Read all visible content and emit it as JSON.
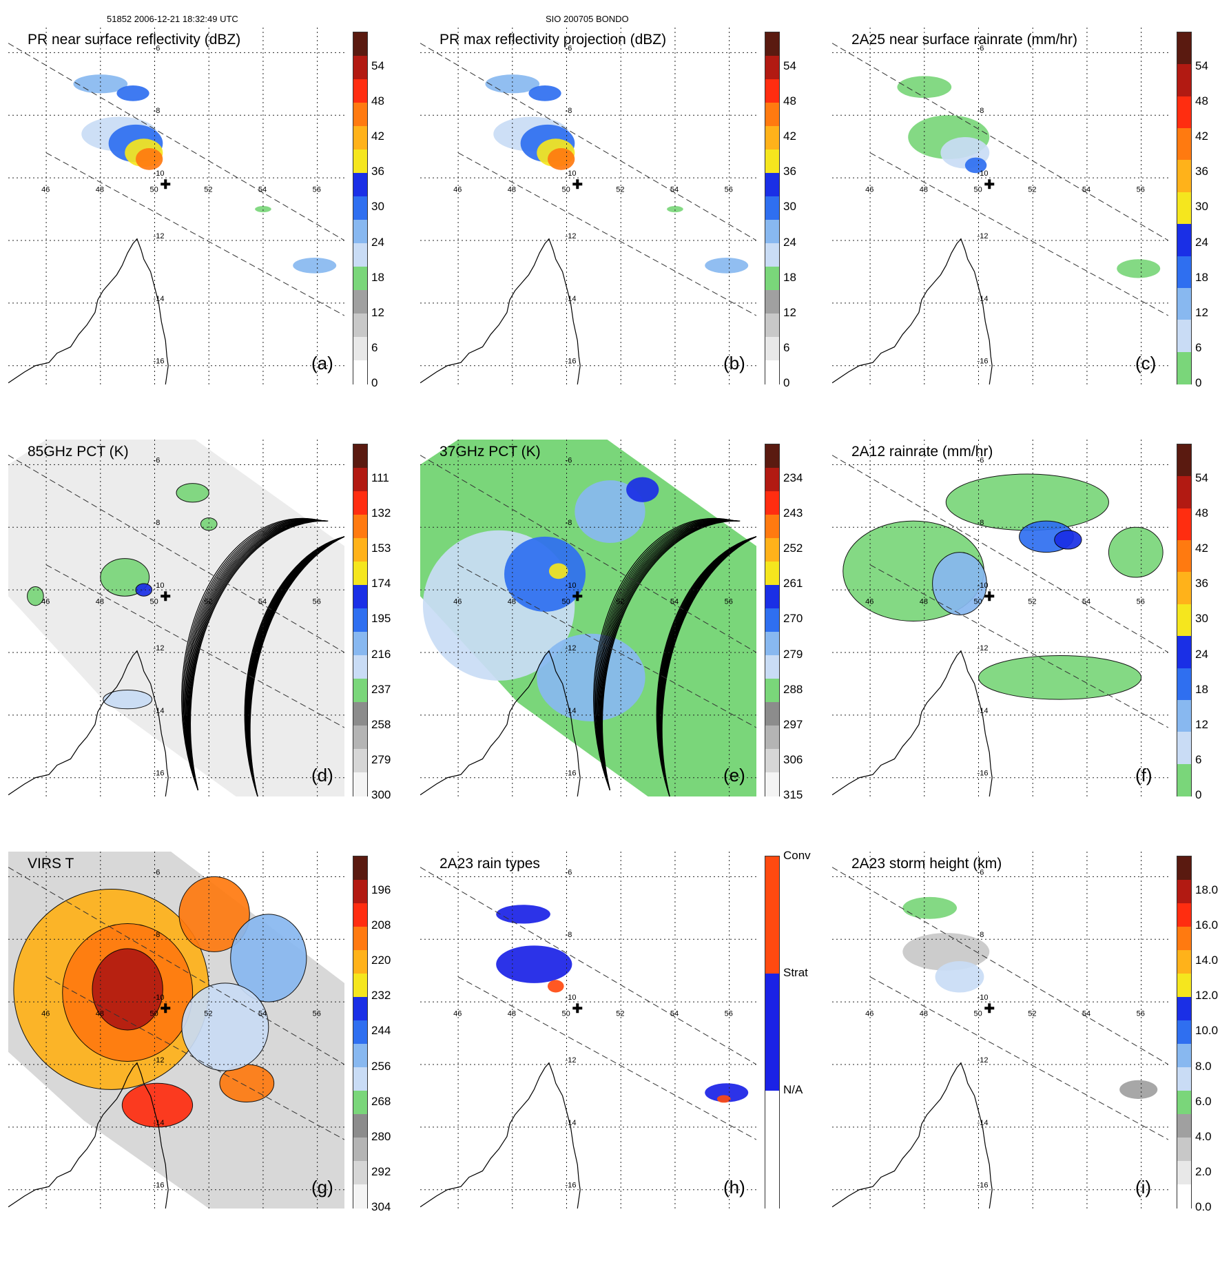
{
  "header": {
    "left": "51852 2006-12-21 18:32:49 UTC",
    "center": "SIO 200705 BONDO"
  },
  "map": {
    "lon_labels": [
      "46",
      "48",
      "50",
      "52",
      "54",
      "56"
    ],
    "lat_labels": [
      "-6",
      "-8",
      "-10",
      "-12",
      "-14",
      "-16"
    ],
    "storm_center": {
      "lon": 50.4,
      "lat": -10.2
    }
  },
  "panels": [
    {
      "id": "a",
      "title": "PR near surface reflectivity (dBZ)",
      "label": "(a)",
      "ticks": [
        "54",
        "48",
        "42",
        "36",
        "30",
        "24",
        "18",
        "12",
        "6",
        "0"
      ],
      "swath": "pr",
      "palette": "refl"
    },
    {
      "id": "b",
      "title": "PR max reflectivity projection (dBZ)",
      "label": "(b)",
      "ticks": [
        "54",
        "48",
        "42",
        "36",
        "30",
        "24",
        "18",
        "12",
        "6",
        "0"
      ],
      "swath": "pr",
      "palette": "refl"
    },
    {
      "id": "c",
      "title": "2A25 near surface rainrate (mm/hr)",
      "label": "(c)",
      "ticks": [
        "54",
        "48",
        "42",
        "36",
        "30",
        "24",
        "18",
        "12",
        "6",
        "0"
      ],
      "swath": "pr",
      "palette": "rain"
    },
    {
      "id": "d",
      "title": "85GHz PCT (K)",
      "label": "(d)",
      "ticks": [
        "111",
        "132",
        "153",
        "174",
        "195",
        "216",
        "237",
        "258",
        "279",
        "300"
      ],
      "swath": "tmi",
      "palette": "pct85"
    },
    {
      "id": "e",
      "title": "37GHz PCT (K)",
      "label": "(e)",
      "ticks": [
        "234",
        "243",
        "252",
        "261",
        "270",
        "279",
        "288",
        "297",
        "306",
        "315"
      ],
      "swath": "tmi",
      "palette": "pct37"
    },
    {
      "id": "f",
      "title": "2A12 rainrate (mm/hr)",
      "label": "(f)",
      "ticks": [
        "54",
        "48",
        "42",
        "36",
        "30",
        "24",
        "18",
        "12",
        "6",
        "0"
      ],
      "swath": "tmi",
      "palette": "rain12"
    },
    {
      "id": "g",
      "title": "VIRS T",
      "label": "(g)",
      "ticks": [
        "196",
        "208",
        "220",
        "232",
        "244",
        "256",
        "268",
        "280",
        "292",
        "304"
      ],
      "swath": "virs",
      "palette": "virs"
    },
    {
      "id": "h",
      "title": "2A23 rain types",
      "label": "(h)",
      "ticks": [
        "Conv",
        "Strat",
        "N/A"
      ],
      "swath": "pr",
      "palette": "types"
    },
    {
      "id": "i",
      "title": "2A23 storm height (km)",
      "label": "(i)",
      "ticks": [
        "18.0",
        "16.0",
        "14.0",
        "12.0",
        "10.0",
        "8.0",
        "6.0",
        "4.0",
        "2.0",
        "0.0"
      ],
      "swath": "pr",
      "palette": "height"
    }
  ],
  "palettes": {
    "refl": [
      "#5a1a10",
      "#b21a12",
      "#ff2d10",
      "#ff7a10",
      "#ffb21a",
      "#f5e61e",
      "#1a2fe6",
      "#2f6ff0",
      "#88b8f0",
      "#c9dcf5",
      "#7ad67a",
      "#a0a0a0",
      "#c8c8c8",
      "#e8e8e8",
      "#ffffff"
    ],
    "rain": [
      "#5a1a10",
      "#b21a12",
      "#ff2d10",
      "#ff7a10",
      "#ffb21a",
      "#f5e61e",
      "#1a2fe6",
      "#2f6ff0",
      "#88b8f0",
      "#c9dcf5",
      "#7ad67a"
    ],
    "rain12": [
      "#5a1a10",
      "#b21a12",
      "#ff2d10",
      "#ff7a10",
      "#ffb21a",
      "#f5e61e",
      "#1a2fe6",
      "#2f6ff0",
      "#88b8f0",
      "#c9dcf5",
      "#7ad67a"
    ],
    "pct85": [
      "#5a1a10",
      "#b21a12",
      "#ff2d10",
      "#ff7a10",
      "#ffb21a",
      "#f5e61e",
      "#1a2fe6",
      "#2f6ff0",
      "#88b8f0",
      "#c9dcf5",
      "#7ad67a",
      "#8c8c8c",
      "#b4b4b4",
      "#d6d6d6",
      "#f4f4f4"
    ],
    "pct37": [
      "#5a1a10",
      "#b21a12",
      "#ff2d10",
      "#ff7a10",
      "#ffb21a",
      "#f5e61e",
      "#1a2fe6",
      "#2f6ff0",
      "#88b8f0",
      "#c9dcf5",
      "#7ad67a",
      "#8c8c8c",
      "#b4b4b4",
      "#d6d6d6",
      "#f4f4f4"
    ],
    "virs": [
      "#5a1a10",
      "#b21a12",
      "#ff2d10",
      "#ff7a10",
      "#ffb21a",
      "#f5e61e",
      "#1a2fe6",
      "#2f6ff0",
      "#88b8f0",
      "#c9dcf5",
      "#7ad67a",
      "#8c8c8c",
      "#b4b4b4",
      "#d6d6d6",
      "#f4f4f4"
    ],
    "types": [
      "#ff4a10",
      "#1a22e6",
      "#ffffff"
    ],
    "height": [
      "#5a1a10",
      "#b21a12",
      "#ff2d10",
      "#ff7a10",
      "#ffb21a",
      "#f5e61e",
      "#1a2fe6",
      "#2f6ff0",
      "#88b8f0",
      "#c9dcf5",
      "#7ad67a",
      "#a0a0a0",
      "#c8c8c8",
      "#e8e8e8",
      "#ffffff"
    ]
  }
}
